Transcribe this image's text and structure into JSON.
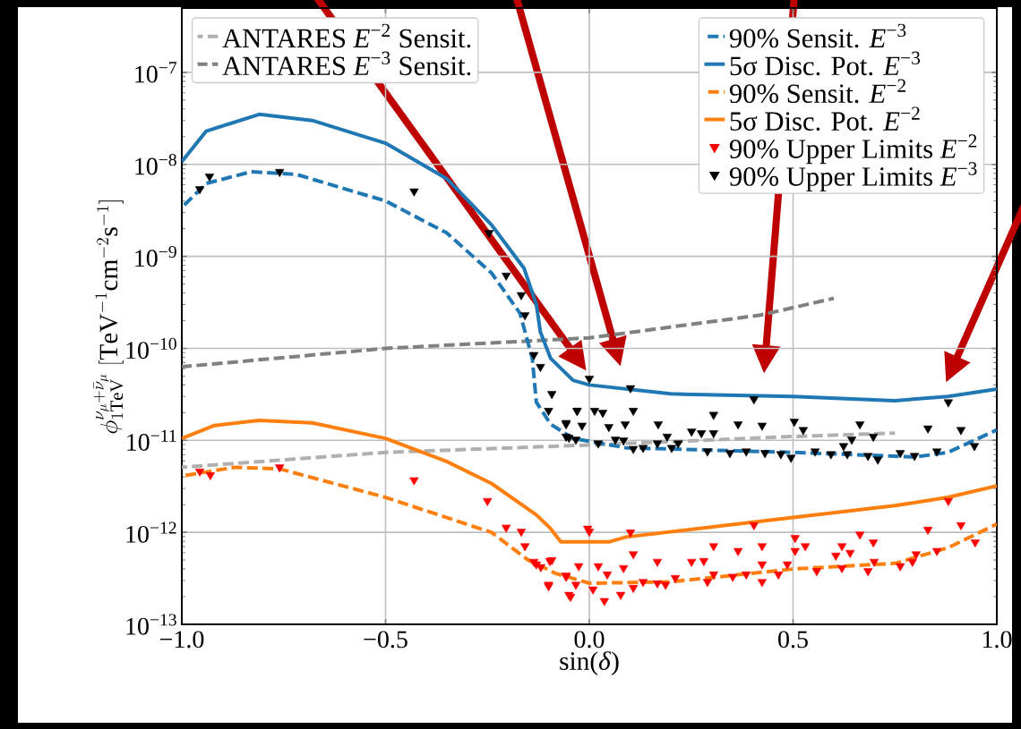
{
  "chart_data": {
    "type": "line",
    "xlabel": "sin(*δ*)",
    "ylabel": "\\phi^{\\nu_\\mu+\\bar{\\nu}_\\mu}_{1\\mathrm{TeV}}\\ [\\mathrm{TeV}^{-1}\\mathrm{cm}^{-2}\\mathrm{s}^{-1}]",
    "log": "y",
    "grid": true,
    "legend": "top right",
    "xlim": [
      -1,
      1
    ],
    "ylim": [
      1e-13,
      5e-07
    ],
    "xticks": [
      {
        "value": -1,
        "label": "−1.0"
      },
      {
        "value": -0.5,
        "label": "−0.5"
      },
      {
        "value": 0,
        "label": "0.0"
      },
      {
        "value": 0.5,
        "label": "0.5"
      },
      {
        "value": 1,
        "label": "1.0"
      }
    ],
    "yticks": [
      {
        "value": 1e-13,
        "label": "10$^{−13}$"
      },
      {
        "value": 1e-12,
        "label": "10$^{−12}$"
      },
      {
        "value": 1e-11,
        "label": "10$^{−11}$"
      },
      {
        "value": 1e-10,
        "label": "10$^{−10}$"
      },
      {
        "value": 1e-09,
        "label": "10$^{−9}$"
      },
      {
        "value": 1e-08,
        "label": "10$^{−8}$"
      },
      {
        "value": 1e-07,
        "label": "10$^{−7}$"
      }
    ],
    "series": [
      {
        "name": "ANTARES *E*$^{−2}$ Sensit.",
        "line_style": "dashed",
        "marker": "none",
        "color": "#b0b0b0",
        "x": [
          -1,
          -0.5,
          0,
          0.5,
          0.75
        ],
        "values": [
          5.1e-12,
          7.4e-12,
          8.9e-12,
          1.1e-11,
          1.2e-11
        ]
      },
      {
        "name": "ANTARES *E*$^{−3}$ Sensit.",
        "line_style": "dashed",
        "marker": "none",
        "color": "#808080",
        "x": [
          -1,
          -0.5,
          0,
          0.42,
          0.6
        ],
        "values": [
          6.3e-11,
          1e-10,
          1.3e-10,
          2.3e-10,
          3.5e-10
        ]
      },
      {
        "name": "90% Sensit. *E*$^{−3}$",
        "line_style": "dashed",
        "marker": "none",
        "color": "#1f77b4",
        "x": [
          -1,
          -0.94,
          -0.83,
          -0.72,
          -0.5,
          -0.35,
          -0.24,
          -0.17,
          -0.14,
          -0.13,
          -0.095,
          -0.04,
          0.09,
          0.5,
          0.8,
          0.88,
          1
        ],
        "values": [
          3.4e-09,
          6.2e-09,
          8.3e-09,
          7.8e-09,
          4e-09,
          1.8e-09,
          6.6e-10,
          2.4e-10,
          7.8e-11,
          2.6e-11,
          1.5e-11,
          1.05e-11,
          8.3e-12,
          7.4e-12,
          6.6e-12,
          7.4e-12,
          1.3e-11
        ]
      },
      {
        "name": "5σ Disc. Pot. *E*$^{−3}$",
        "line_style": "solid",
        "marker": "none",
        "color": "#1f77b4",
        "x": [
          -1,
          -0.94,
          -0.81,
          -0.68,
          -0.5,
          -0.35,
          -0.24,
          -0.16,
          -0.13,
          -0.12,
          -0.095,
          -0.04,
          0,
          0.2,
          0.5,
          0.75,
          0.88,
          1
        ],
        "values": [
          1.07e-08,
          2.3e-08,
          3.5e-08,
          3e-08,
          1.7e-08,
          7e-09,
          2.2e-09,
          7.4e-10,
          3e-10,
          1.5e-10,
          7.8e-11,
          4.5e-11,
          4e-11,
          3.2e-11,
          3e-11,
          2.7e-11,
          3e-11,
          3.6e-11
        ]
      },
      {
        "name": "90% Sensit. *E*$^{−2}$",
        "line_style": "dashed",
        "marker": "none",
        "color": "#ff7f0e",
        "x": [
          -1,
          -0.87,
          -0.76,
          -0.5,
          -0.24,
          -0.15,
          -0.084,
          0,
          0.2,
          0.5,
          0.75,
          0.88,
          1
        ],
        "values": [
          4.1e-12,
          5.1e-12,
          4.9e-12,
          2.4e-12,
          1e-12,
          5e-13,
          3.6e-13,
          2.8e-13,
          2.9e-13,
          4e-13,
          4.6e-13,
          6.8e-13,
          1.23e-12
        ]
      },
      {
        "name": "5σ Disc. Pot. *E*$^{−2}$",
        "line_style": "solid",
        "marker": "none",
        "color": "#ff7f0e",
        "x": [
          -1,
          -0.92,
          -0.81,
          -0.68,
          -0.5,
          -0.35,
          -0.24,
          -0.13,
          -0.095,
          -0.07,
          0.05,
          0.09,
          0.5,
          0.75,
          0.88,
          1
        ],
        "values": [
          1.05e-11,
          1.45e-11,
          1.65e-11,
          1.55e-11,
          1.05e-11,
          5.9e-12,
          3.4e-12,
          1.55e-12,
          1.1e-12,
          7.9e-13,
          7.9e-13,
          8.9e-13,
          1.45e-12,
          1.95e-12,
          2.4e-12,
          3.2e-12
        ]
      },
      {
        "name": "90% Upper Limits *E*$^{−2}$",
        "type": "scatter",
        "marker": "triangle_down",
        "color": "#ff0000",
        "x": [
          -0.956,
          -0.93,
          -0.76,
          -0.43,
          -0.25,
          -0.204,
          -0.167,
          -0.158,
          -0.136,
          -0.119,
          -0.092,
          -0.1,
          -0.057,
          -0.046,
          -0.004,
          0,
          0.101,
          0.404,
          0.881,
          0.831,
          0.912,
          0.947,
          0.664,
          0.697,
          0.505,
          0.53,
          0.505,
          0.305,
          0.365,
          0.424,
          0.108,
          0.167,
          0.251,
          0.281,
          0.62,
          0.64,
          0.605,
          0.699,
          0.802,
          0.853,
          0.763,
          0.793,
          0.684,
          0.62,
          0.558,
          0.486,
          0.464,
          0.424,
          0.424,
          0.385,
          0.352,
          0.305,
          0.29,
          0.211,
          0.187,
          0.167,
          0.132,
          0.108,
          0.084,
          0.077,
          0.044,
          0.037,
          0.022,
          0.009,
          -0.026,
          -0.033,
          -0.05,
          -0.057,
          -0.097,
          -0.1,
          -0.13
        ],
        "values": [
          4.6e-12,
          4.2e-12,
          5.1e-12,
          3.7e-12,
          2.2e-12,
          1.13e-12,
          1.02e-12,
          7.1e-13,
          4.8e-13,
          4.2e-13,
          5e-13,
          2.7e-13,
          3.4e-13,
          2e-13,
          1.1e-12,
          1.02e-12,
          1e-12,
          1.2e-12,
          2.2e-12,
          1.07e-12,
          1.2e-12,
          7.8e-13,
          9.5e-13,
          7.8e-13,
          8.7e-13,
          7.1e-13,
          6.3e-13,
          7.1e-13,
          6.3e-13,
          7.1e-13,
          5.8e-13,
          4.8e-13,
          4.8e-13,
          4.9e-13,
          7.1e-13,
          6e-13,
          5.6e-13,
          4.8e-13,
          5.8e-13,
          6.3e-13,
          4.3e-13,
          4.8e-13,
          3.8e-13,
          4.1e-13,
          3.8e-13,
          4.5e-13,
          3.5e-13,
          4.5e-13,
          2.9e-13,
          3.5e-13,
          3.3e-13,
          3.5e-13,
          2.9e-13,
          3.2e-13,
          2.7e-13,
          2.8e-13,
          2.9e-13,
          2.5e-13,
          4.1e-13,
          2.1e-13,
          3.5e-13,
          1.8e-13,
          4.3e-13,
          2.4e-13,
          4.3e-13,
          2.7e-13,
          2.1e-13,
          3.3e-13,
          4.9e-13,
          2.6e-13,
          4.5e-13
        ]
      },
      {
        "name": "90% Upper Limits *E*$^{−3}$",
        "type": "scatter",
        "marker": "triangle_down",
        "color": "#000000",
        "x": [
          -0.956,
          -0.932,
          -0.76,
          -0.43,
          -0.246,
          -0.204,
          -0.167,
          -0.158,
          -0.136,
          -0.12,
          -0.092,
          -0.1,
          -0.057,
          -0.03,
          -0.05,
          0,
          0.101,
          0.404,
          0.881,
          -0.03,
          0.013,
          0.033,
          0.108,
          -0.057,
          -0.018,
          0.048,
          0.088,
          0.169,
          0.305,
          0.365,
          0.424,
          0.503,
          0.525,
          0.664,
          0.697,
          0.831,
          0.912,
          0.945,
          0.251,
          0.275,
          0.305,
          -0.057,
          -0.033,
          0.022,
          0.064,
          0.084,
          0.108,
          0.132,
          0.191,
          0.167,
          0.202,
          0.218,
          0.29,
          0.345,
          0.385,
          0.431,
          0.47,
          0.495,
          0.554,
          0.593,
          0.624,
          0.644,
          0.633,
          0.684,
          0.708,
          0.763,
          0.798,
          0.853
        ],
        "values": [
          5.4e-09,
          7.4e-09,
          8.3e-09,
          5.1e-09,
          1.8e-09,
          6.2e-10,
          3.8e-10,
          2.3e-10,
          8.5e-11,
          6.3e-11,
          3.2e-11,
          2.1e-11,
          1.5e-11,
          2.1e-11,
          1.07e-11,
          4.7e-11,
          3.7e-11,
          2.8e-11,
          2.6e-11,
          2.1e-11,
          2.1e-11,
          2e-11,
          2.1e-11,
          1.55e-11,
          1.45e-11,
          1.4e-11,
          1.5e-11,
          1.5e-11,
          1.9e-11,
          1.5e-11,
          1.45e-11,
          1.6e-11,
          1.3e-11,
          1.5e-11,
          1.1e-11,
          1.35e-11,
          1.3e-11,
          8.7e-12,
          1.25e-11,
          1.2e-11,
          1.2e-11,
          1.1e-11,
          1.02e-11,
          9.3e-12,
          1.02e-11,
          1e-11,
          8.1e-12,
          8.3e-12,
          1.1e-11,
          9.3e-12,
          8.3e-12,
          9.3e-12,
          7.6e-12,
          7.3e-12,
          7.6e-12,
          7.3e-12,
          7.1e-12,
          6.5e-12,
          7.6e-12,
          7.1e-12,
          8.7e-12,
          1.02e-11,
          7.1e-12,
          6.8e-12,
          6.2e-12,
          7.3e-12,
          6.8e-12,
          7.6e-12
        ]
      }
    ]
  }
}
